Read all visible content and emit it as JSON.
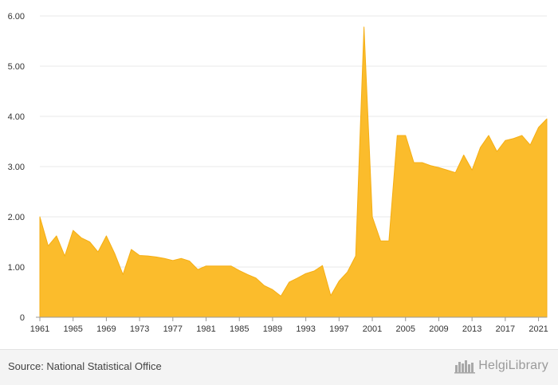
{
  "chart_data": {
    "type": "area",
    "x": [
      1961,
      1962,
      1963,
      1964,
      1965,
      1966,
      1967,
      1968,
      1969,
      1970,
      1971,
      1972,
      1973,
      1974,
      1975,
      1976,
      1977,
      1978,
      1979,
      1980,
      1981,
      1982,
      1983,
      1984,
      1985,
      1986,
      1987,
      1988,
      1989,
      1990,
      1991,
      1992,
      1993,
      1994,
      1995,
      1996,
      1997,
      1998,
      1999,
      2000,
      2001,
      2002,
      2003,
      2004,
      2005,
      2006,
      2007,
      2008,
      2009,
      2010,
      2011,
      2012,
      2013,
      2014,
      2015,
      2016,
      2017,
      2018,
      2019,
      2020,
      2021,
      2022
    ],
    "series": [
      {
        "values": [
          2.0,
          1.42,
          1.62,
          1.22,
          1.73,
          1.58,
          1.5,
          1.3,
          1.62,
          1.27,
          0.85,
          1.35,
          1.23,
          1.22,
          1.2,
          1.17,
          1.13,
          1.17,
          1.12,
          0.95,
          1.02,
          1.02,
          1.02,
          1.02,
          0.93,
          0.85,
          0.78,
          0.63,
          0.55,
          0.42,
          0.7,
          0.78,
          0.87,
          0.92,
          1.03,
          0.43,
          0.72,
          0.9,
          1.22,
          5.78,
          2.0,
          1.52,
          1.52,
          3.62,
          3.62,
          3.08,
          3.08,
          3.02,
          2.98,
          2.93,
          2.88,
          3.23,
          2.93,
          3.38,
          3.62,
          3.3,
          3.52,
          3.56,
          3.62,
          3.43,
          3.78,
          3.95
        ]
      }
    ],
    "xticks": [
      "1961",
      "1965",
      "1969",
      "1973",
      "1977",
      "1981",
      "1985",
      "1989",
      "1993",
      "1997",
      "2001",
      "2005",
      "2009",
      "2013",
      "2017",
      "2021"
    ],
    "yticks": [
      "0",
      "1.00",
      "2.00",
      "3.00",
      "4.00",
      "5.00",
      "6.00"
    ],
    "ylim": [
      0,
      6
    ],
    "grid": true,
    "fill_color": "#fbbc2c",
    "line_color": "#f5ae14",
    "grid_color": "#e8e8e8"
  },
  "footer": {
    "source": "Source: National Statistical Office",
    "brand": "HelgiLibrary"
  }
}
